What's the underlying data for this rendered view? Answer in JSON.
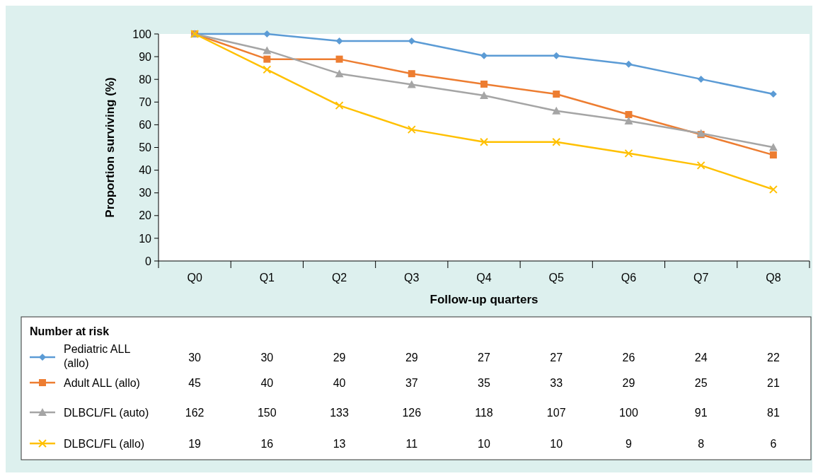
{
  "chart_data": {
    "type": "line",
    "xlabel": "Follow-up quarters",
    "ylabel": "Proportion surviving (%)",
    "categories": [
      "Q0",
      "Q1",
      "Q2",
      "Q3",
      "Q4",
      "Q5",
      "Q6",
      "Q7",
      "Q8"
    ],
    "ylim": [
      0,
      100
    ],
    "yticks": [
      0,
      10,
      20,
      30,
      40,
      50,
      60,
      70,
      80,
      90,
      100
    ],
    "grid": false,
    "legend": "bottom",
    "line_style": "solid",
    "series": [
      {
        "name": "Pediatric ALL (allo)",
        "color": "#5b9bd5",
        "marker": "diamond",
        "values": [
          100,
          100,
          96.9,
          96.9,
          90.4,
          90.4,
          86.7,
          80.1,
          73.5
        ]
      },
      {
        "name": "Adult ALL (allo)",
        "color": "#ed7d31",
        "marker": "square",
        "values": [
          100,
          88.9,
          88.9,
          82.5,
          77.9,
          73.5,
          64.5,
          55.7,
          46.7
        ]
      },
      {
        "name": "DLBCL/FL (auto)",
        "color": "#a5a5a5",
        "marker": "triangle",
        "values": [
          100,
          92.7,
          82.5,
          77.7,
          72.9,
          66.1,
          61.7,
          56.2,
          50.1
        ]
      },
      {
        "name": "DLBCL/FL (allo)",
        "color": "#ffc000",
        "marker": "cross",
        "values": [
          100,
          84.3,
          68.5,
          57.9,
          52.4,
          52.4,
          47.4,
          42.1,
          31.5
        ]
      }
    ],
    "annotations": [
      "Number at risk",
      "30",
      "30",
      "29",
      "29",
      "27",
      "27",
      "26",
      "24",
      "22",
      "45",
      "40",
      "40",
      "37",
      "35",
      "33",
      "29",
      "25",
      "21",
      "162",
      "150",
      "133",
      "126",
      "118",
      "107",
      "100",
      "91",
      "81",
      "19",
      "16",
      "13",
      "11",
      "10",
      "10",
      "9",
      "8",
      "6"
    ]
  }
}
